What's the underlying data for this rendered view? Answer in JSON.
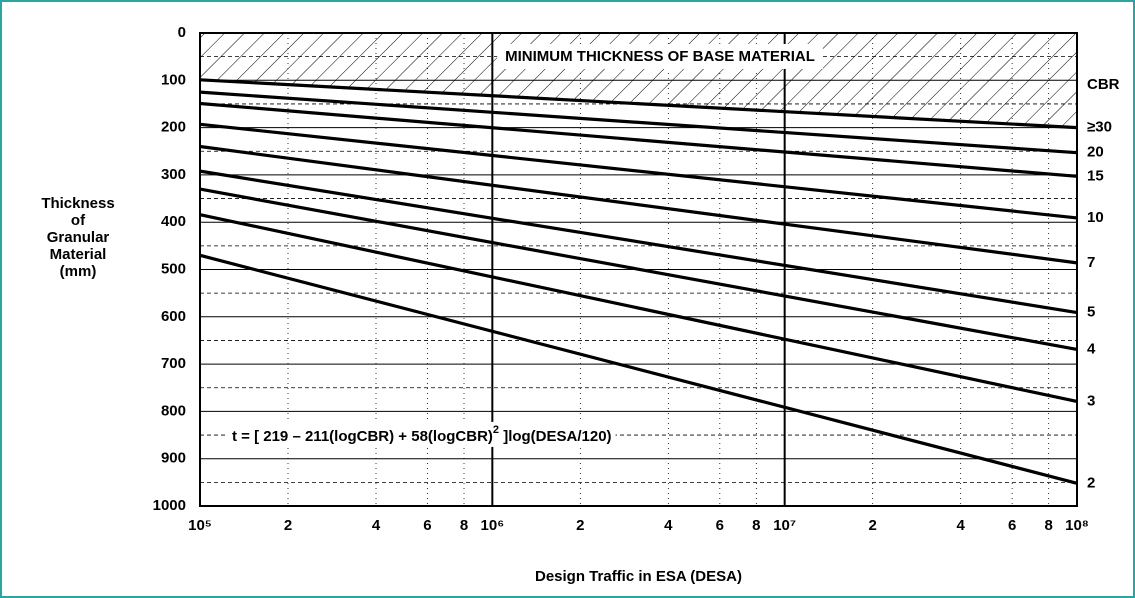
{
  "chart_data": {
    "type": "line",
    "annotation": "MINIMUM THICKNESS OF BASE MATERIAL",
    "formula": [
      "t = [ 219 – 211(logCBR) + 58(logCBR)",
      "2",
      " ]log(DESA/120)"
    ],
    "xlabel": "Design Traffic in ESA (DESA)",
    "ylabel": [
      "Thickness",
      "of",
      "Granular",
      "Material",
      "(mm)"
    ],
    "legend_title": "CBR",
    "x": [
      100000,
      100000000
    ],
    "xlog": true,
    "xlim": [
      100000,
      100000000
    ],
    "xticks": [
      {
        "value": 100000,
        "label": "10⁵"
      },
      200000,
      400000,
      600000,
      800000,
      {
        "value": 1000000,
        "label": "10⁶"
      },
      2000000,
      4000000,
      6000000,
      8000000,
      {
        "value": 10000000,
        "label": "10⁷"
      },
      20000000,
      40000000,
      60000000,
      80000000,
      {
        "value": 100000000,
        "label": "10⁸"
      }
    ],
    "xtick_labels_shown": [
      {
        "value": 100000,
        "label": "10⁵"
      },
      {
        "value": 200000,
        "label": "2"
      },
      {
        "value": 400000,
        "label": "4"
      },
      {
        "value": 600000,
        "label": "6"
      },
      {
        "value": 800000,
        "label": "8"
      },
      {
        "value": 1000000,
        "label": "10⁶"
      },
      {
        "value": 2000000,
        "label": "2"
      },
      {
        "value": 4000000,
        "label": "4"
      },
      {
        "value": 6000000,
        "label": "6"
      },
      {
        "value": 8000000,
        "label": "8"
      },
      {
        "value": 10000000,
        "label": "10⁷"
      },
      {
        "value": 20000000,
        "label": "2"
      },
      {
        "value": 40000000,
        "label": "4"
      },
      {
        "value": 60000000,
        "label": "6"
      },
      {
        "value": 80000000,
        "label": "8"
      },
      {
        "value": 100000000,
        "label": "10⁸"
      }
    ],
    "ylim": [
      0,
      1000
    ],
    "y_inverted": true,
    "yticks": [
      0,
      100,
      200,
      300,
      400,
      500,
      600,
      700,
      800,
      900,
      1000
    ],
    "y_minor_ticks": [
      50,
      150,
      250,
      350,
      450,
      550,
      650,
      750,
      850,
      950
    ],
    "grid": true,
    "color": "#000000",
    "series": [
      {
        "name": "≥30",
        "values": [
          99,
          200
        ]
      },
      {
        "name": "20",
        "values": [
          125,
          253
        ]
      },
      {
        "name": "15",
        "values": [
          149,
          303
        ]
      },
      {
        "name": "10",
        "values": [
          193,
          391
        ]
      },
      {
        "name": "7",
        "values": [
          240,
          486
        ]
      },
      {
        "name": "5",
        "values": [
          292,
          591
        ]
      },
      {
        "name": "4",
        "values": [
          330,
          669
        ]
      },
      {
        "name": "3",
        "values": [
          384,
          779
        ]
      },
      {
        "name": "2",
        "values": [
          470,
          952
        ]
      }
    ]
  }
}
